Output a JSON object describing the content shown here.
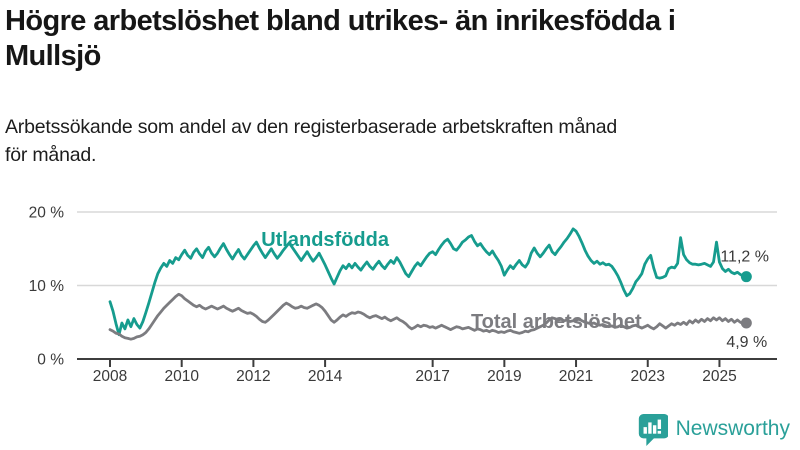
{
  "header": {
    "title_lines": [
      "Högre arbetslöshet bland utrikes- än inrikesfödda i",
      "Mullsjö"
    ],
    "subtitle_lines": [
      "Arbetssökande som andel av den registerbaserade arbetskraften månad",
      "för månad."
    ]
  },
  "colors": {
    "foreign_born_line": "#169c8e",
    "total_line": "#7c7c80",
    "grid": "#d8d8d8",
    "axis": "#3d3d3d",
    "tick_label": "#3a3a3a",
    "value_label": "#3a3a3a",
    "brand_teal": "#2aa099"
  },
  "chart_data": {
    "type": "line",
    "title": "Högre arbetslöshet bland utrikes- än inrikesfödda i Mullsjö",
    "subtitle": "Arbetssökande som andel av den registerbaserade arbetskraften månad för månad.",
    "grid": "horizontal-only",
    "x_start": 2008.0,
    "x_step": 0.0833333,
    "x_tick_values": [
      2008,
      2010,
      2012,
      2014,
      2017,
      2019,
      2021,
      2023,
      2025
    ],
    "x_tick_labels": [
      "2008",
      "2010",
      "2012",
      "2014",
      "2017",
      "2019",
      "2021",
      "2023",
      "2025"
    ],
    "y_ticks": [
      {
        "value": 0,
        "label": "0 %"
      },
      {
        "value": 10,
        "label": "10 %"
      },
      {
        "value": 20,
        "label": "20 %"
      }
    ],
    "ylim": [
      0,
      22
    ],
    "xlim": [
      2007.1,
      2026.6
    ],
    "series": [
      {
        "id": "utlandsfodda",
        "name": "Utlandsfödda",
        "color": "#169c8e",
        "end_label": "11,2 %",
        "end_value": 11.2,
        "label_at": {
          "x": 2014.0,
          "y": 16.3
        },
        "values": [
          7.8,
          6.5,
          4.8,
          3.3,
          4.9,
          4.1,
          5.3,
          4.4,
          5.5,
          4.7,
          4.2,
          5.1,
          6.3,
          7.6,
          9.0,
          10.4,
          11.6,
          12.4,
          13.0,
          12.6,
          13.4,
          13.0,
          13.8,
          13.5,
          14.2,
          14.8,
          14.1,
          13.7,
          14.5,
          15.0,
          14.3,
          13.8,
          14.7,
          15.2,
          14.4,
          13.9,
          14.4,
          15.1,
          15.7,
          14.9,
          14.2,
          13.6,
          14.3,
          14.9,
          14.1,
          13.6,
          14.2,
          14.8,
          15.4,
          15.9,
          15.1,
          14.4,
          13.8,
          14.4,
          15.0,
          14.3,
          13.7,
          14.2,
          14.8,
          15.3,
          15.8,
          15.2,
          14.6,
          14.0,
          13.4,
          14.0,
          14.6,
          13.9,
          13.3,
          13.8,
          14.4,
          13.6,
          12.8,
          11.9,
          11.0,
          10.2,
          11.1,
          12.0,
          12.7,
          12.3,
          12.9,
          12.4,
          13.0,
          12.5,
          12.1,
          12.7,
          13.2,
          12.6,
          12.2,
          12.8,
          13.3,
          12.7,
          12.3,
          12.9,
          13.4,
          13.0,
          13.8,
          13.2,
          12.4,
          11.6,
          11.2,
          11.9,
          12.6,
          13.1,
          12.7,
          13.3,
          13.9,
          14.4,
          14.6,
          14.2,
          14.9,
          15.5,
          16.0,
          16.3,
          15.7,
          15.0,
          14.8,
          15.3,
          15.9,
          16.2,
          16.6,
          16.8,
          16.0,
          15.4,
          15.7,
          15.1,
          14.6,
          14.2,
          14.7,
          14.0,
          13.4,
          12.6,
          11.4,
          12.1,
          12.7,
          12.3,
          12.9,
          13.4,
          12.8,
          12.5,
          13.1,
          14.4,
          15.1,
          14.4,
          13.9,
          14.4,
          15.0,
          15.5,
          14.6,
          14.2,
          14.8,
          15.3,
          15.9,
          16.4,
          17.0,
          17.7,
          17.4,
          16.7,
          15.8,
          14.8,
          14.0,
          13.4,
          13.0,
          13.3,
          12.9,
          13.1,
          12.8,
          12.9,
          12.6,
          12.0,
          11.3,
          10.4,
          9.4,
          8.6,
          8.9,
          9.6,
          10.5,
          11.0,
          11.6,
          12.9,
          13.6,
          14.1,
          12.4,
          11.1,
          11.0,
          11.1,
          11.3,
          12.3,
          12.5,
          12.4,
          13.0,
          16.5,
          14.2,
          13.5,
          13.1,
          12.9,
          12.9,
          12.8,
          12.9,
          13.0,
          12.8,
          12.6,
          13.2,
          15.9,
          13.2,
          12.3,
          11.9,
          12.2,
          11.8,
          11.6,
          11.8,
          11.5,
          11.3,
          11.2
        ]
      },
      {
        "id": "total",
        "name": "Total arbetslöshet",
        "color": "#7c7c80",
        "end_label": "4,9 %",
        "end_value": 4.9,
        "label_at": {
          "x": 2020.45,
          "y": 5.15
        },
        "values": [
          4.0,
          3.8,
          3.5,
          3.4,
          3.1,
          2.9,
          2.8,
          2.7,
          2.8,
          3.0,
          3.1,
          3.3,
          3.6,
          4.1,
          4.7,
          5.3,
          5.9,
          6.4,
          6.9,
          7.3,
          7.7,
          8.1,
          8.5,
          8.8,
          8.6,
          8.2,
          7.9,
          7.6,
          7.3,
          7.1,
          7.3,
          7.0,
          6.8,
          7.0,
          7.2,
          7.0,
          6.8,
          7.0,
          7.2,
          6.9,
          6.7,
          6.5,
          6.7,
          6.9,
          6.6,
          6.4,
          6.2,
          6.3,
          6.1,
          5.8,
          5.4,
          5.1,
          5.0,
          5.3,
          5.7,
          6.1,
          6.5,
          6.9,
          7.3,
          7.6,
          7.4,
          7.1,
          6.9,
          7.0,
          7.2,
          7.0,
          6.9,
          7.1,
          7.3,
          7.5,
          7.3,
          7.0,
          6.5,
          5.9,
          5.3,
          5.0,
          5.3,
          5.7,
          6.0,
          5.8,
          6.1,
          6.3,
          6.2,
          6.4,
          6.3,
          6.1,
          5.8,
          5.6,
          5.8,
          5.9,
          5.7,
          5.5,
          5.7,
          5.4,
          5.2,
          5.4,
          5.6,
          5.3,
          5.1,
          4.8,
          4.4,
          4.1,
          4.3,
          4.6,
          4.4,
          4.6,
          4.5,
          4.3,
          4.4,
          4.2,
          4.4,
          4.6,
          4.4,
          4.2,
          4.0,
          4.2,
          4.4,
          4.3,
          4.1,
          4.2,
          4.3,
          4.1,
          3.9,
          4.1,
          4.0,
          3.8,
          3.9,
          3.7,
          3.9,
          3.8,
          3.6,
          3.7,
          3.6,
          3.8,
          3.9,
          3.7,
          3.6,
          3.5,
          3.6,
          3.8,
          3.7,
          3.9,
          4.0,
          4.2,
          4.4,
          4.6,
          4.9,
          5.3,
          5.6,
          5.5,
          5.3,
          5.4,
          5.2,
          5.3,
          5.1,
          5.2,
          5.3,
          5.4,
          5.2,
          5.0,
          4.9,
          4.8,
          4.9,
          4.7,
          4.6,
          4.7,
          4.5,
          4.4,
          4.5,
          4.3,
          4.4,
          4.6,
          4.4,
          4.2,
          4.3,
          4.5,
          4.6,
          4.4,
          4.2,
          4.4,
          4.6,
          4.3,
          4.1,
          4.4,
          4.8,
          4.5,
          4.2,
          4.5,
          4.8,
          4.6,
          4.9,
          4.7,
          5.0,
          4.7,
          5.2,
          4.9,
          5.3,
          5.0,
          5.4,
          5.1,
          5.5,
          5.2,
          5.6,
          5.3,
          5.6,
          5.2,
          5.5,
          5.1,
          5.4,
          5.0,
          5.3,
          5.0,
          4.8,
          4.9
        ]
      }
    ]
  },
  "logo": {
    "name": "Newsworthy"
  }
}
